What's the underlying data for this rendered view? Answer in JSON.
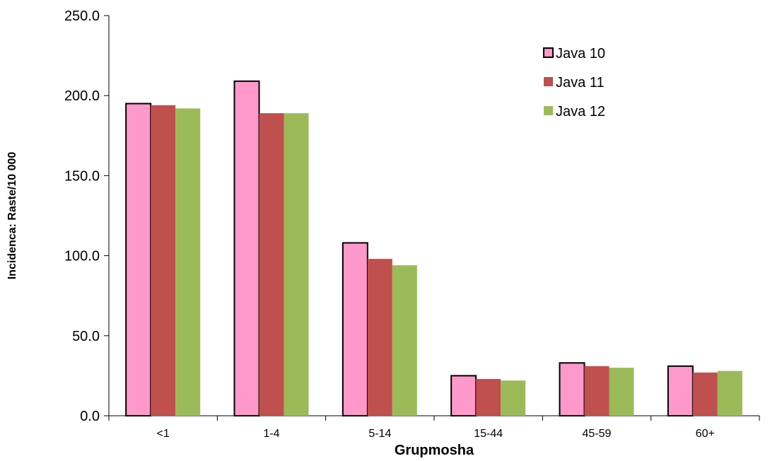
{
  "chart_data": {
    "type": "bar",
    "title": "",
    "xlabel": "Grupmosha",
    "ylabel": "Incidenca: Raste/10 000",
    "ylim": [
      0,
      250
    ],
    "yticks": [
      "0.0",
      "50.0",
      "100.0",
      "150.0",
      "200.0",
      "250.0"
    ],
    "categories": [
      "<1",
      "1-4",
      "5-14",
      "15-44",
      "45-59",
      "60+"
    ],
    "series": [
      {
        "name": "Java 10",
        "color": "#FF99CC",
        "outline": "#000000",
        "values": [
          195,
          209,
          108,
          25,
          33,
          31
        ]
      },
      {
        "name": "Java 11",
        "color": "#C0504D",
        "outline": "",
        "values": [
          194,
          189,
          98,
          23,
          31,
          27
        ]
      },
      {
        "name": "Java 12",
        "color": "#9BBB59",
        "outline": "",
        "values": [
          192,
          189,
          94,
          22,
          30,
          28
        ]
      }
    ],
    "legend_position": "top-right",
    "grid": false
  }
}
